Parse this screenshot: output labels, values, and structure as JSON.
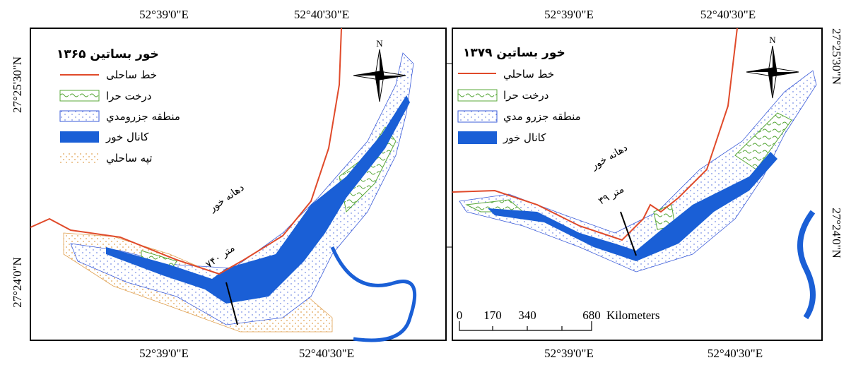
{
  "panels": [
    {
      "title": "خور بساتين ۱۳۶۵",
      "legend": [
        "خط ساحلی",
        "درخت حرا",
        "منطقه جزرومدي",
        "کانال خور",
        "تپه ساحلي"
      ],
      "coords": {
        "top": [
          "52°39'0\"E",
          "52°40'30\"E"
        ],
        "bottom": [
          "52°39'0\"E",
          "52°40'30\"E"
        ],
        "side": [
          "27°25'30\"N",
          "27°24'0\"N"
        ]
      },
      "north": "N",
      "annotation": {
        "label": "دهانه خور",
        "distance": "۷۴۰ متر"
      }
    },
    {
      "title": "خور بساتين ۱۳۷۹",
      "legend": [
        "خط ساحلي",
        "درخت حرا",
        "منطقه جزرو مدي",
        "کانال خور"
      ],
      "coords": {
        "top": [
          "52°39'0\"E",
          "52°40'30\"E"
        ],
        "bottom": [
          "52°39'0\"E",
          "52°40'30\"E"
        ],
        "side": [
          "27°25'30\"N",
          "27°24'0\"N"
        ]
      },
      "north": "N",
      "annotation": {
        "label": "دهانه خور",
        "distance": "۳۹ متر"
      },
      "scale": {
        "ticks": [
          "0",
          "170",
          "340",
          "680"
        ],
        "unit": "Kilometers"
      }
    }
  ]
}
